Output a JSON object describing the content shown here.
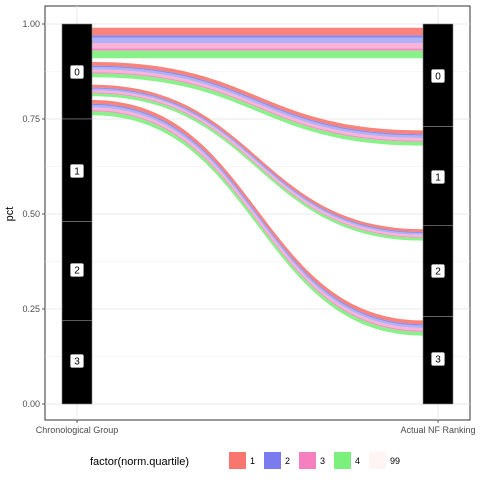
{
  "chart_data": {
    "type": "alluvial",
    "axes": [
      "Chronological Group",
      "Actual NF Ranking"
    ],
    "ylabel": "pct",
    "ylim": [
      0,
      1
    ],
    "yticks": [
      "0.00",
      "0.25",
      "0.50",
      "0.75",
      "1.00"
    ],
    "ytick_values": [
      0,
      0.25,
      0.5,
      0.75,
      1.0
    ],
    "strata": {
      "Chronological Group": [
        {
          "label": "0",
          "from": 0.75,
          "to": 1.0
        },
        {
          "label": "1",
          "from": 0.48,
          "to": 0.75
        },
        {
          "label": "2",
          "from": 0.22,
          "to": 0.48
        },
        {
          "label": "3",
          "from": 0.0,
          "to": 0.22
        }
      ],
      "Actual NF Ranking": [
        {
          "label": "0",
          "from": 0.73,
          "to": 1.0
        },
        {
          "label": "1",
          "from": 0.47,
          "to": 0.73
        },
        {
          "label": "2",
          "from": 0.23,
          "to": 0.47
        },
        {
          "label": "3",
          "from": 0.0,
          "to": 0.23
        }
      ]
    },
    "quartile_colors": {
      "1": "#f8766d",
      "2": "#7b7bf0",
      "3": "#f67fbf",
      "4": "#7cf07c",
      "99": "#fff5f5"
    },
    "flows": [
      {
        "left": [
          0.91,
          0.99
        ],
        "right": [
          0.91,
          0.99
        ]
      },
      {
        "left": [
          0.86,
          0.9
        ],
        "right": [
          0.68,
          0.72
        ]
      },
      {
        "left": [
          0.81,
          0.84
        ],
        "right": [
          0.43,
          0.46
        ]
      },
      {
        "left": [
          0.76,
          0.8
        ],
        "right": [
          0.18,
          0.22
        ]
      }
    ],
    "legend": {
      "title": "factor(norm.quartile)",
      "entries": [
        "1",
        "2",
        "3",
        "4",
        "99"
      ],
      "position": "bottom"
    },
    "grid": true
  }
}
